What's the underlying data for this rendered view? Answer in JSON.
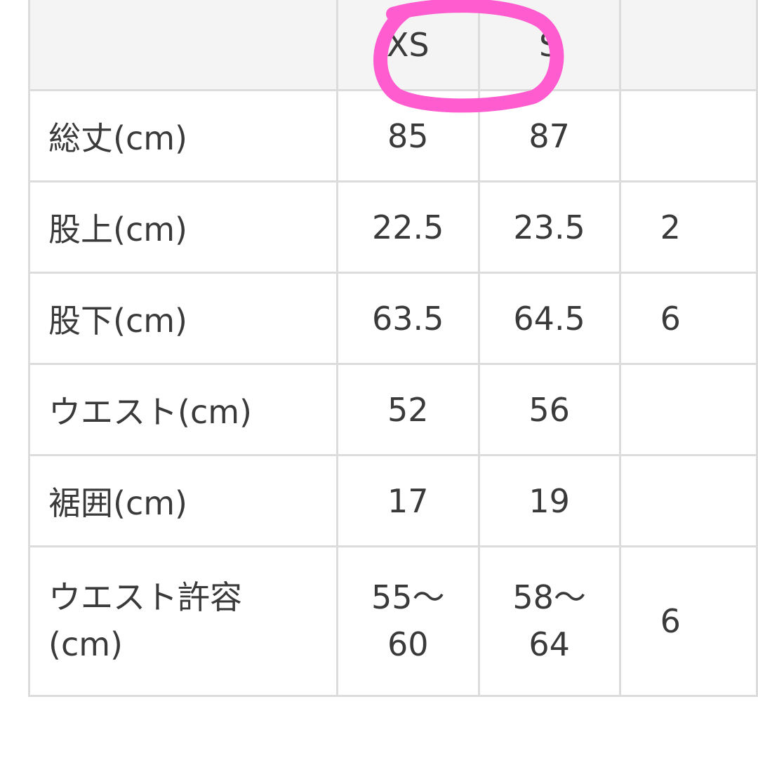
{
  "header": {
    "sizes": [
      "XS",
      "S",
      ""
    ]
  },
  "rows": [
    {
      "label": "総丈(cm)",
      "values": [
        "85",
        "87",
        ""
      ]
    },
    {
      "label": "股上(cm)",
      "values": [
        "22.5",
        "23.5",
        "2"
      ]
    },
    {
      "label": "股下(cm)",
      "values": [
        "63.5",
        "64.5",
        "6"
      ]
    },
    {
      "label": "ウエスト(cm)",
      "values": [
        "52",
        "56",
        ""
      ]
    },
    {
      "label": "裾囲(cm)",
      "values": [
        "17",
        "19",
        ""
      ]
    },
    {
      "label": "ウエスト許容",
      "label2": "(cm)",
      "values": [
        "55〜",
        "58〜",
        "6"
      ],
      "values2": [
        "60",
        "64",
        ""
      ]
    }
  ],
  "highlight": {
    "color": "#ff5ccf",
    "target": "XS"
  }
}
